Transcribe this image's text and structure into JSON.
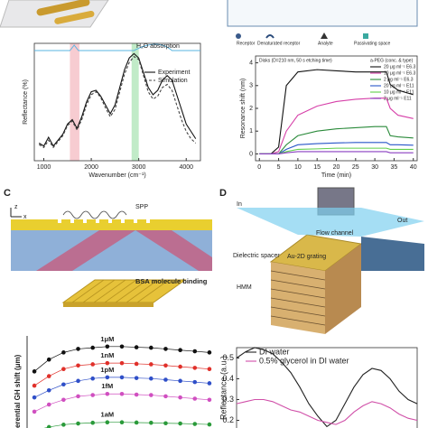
{
  "panels": {
    "c": "C",
    "d": "D"
  },
  "diagrams": {
    "top_right_legend": [
      "Receptor",
      "Denaturated receptor",
      "Analyte",
      "Passivating space"
    ],
    "c_axes": {
      "z": "z",
      "x": "x",
      "spp": "SPP"
    },
    "c_binding": "BSA molecule binding",
    "d_labels": {
      "in": "In",
      "out": "Out",
      "flow": "Flow channel",
      "spacer": "Dielectric spacer",
      "grating": "Au-2D grating",
      "hmm": "HMM"
    }
  },
  "chart_data": [
    {
      "type": "line",
      "xlabel": "Wavenumber (cm⁻¹)",
      "ylabel": "Reflectance (%)",
      "annotation": "H₂O absorption",
      "x": [
        900,
        1000,
        1100,
        1200,
        1300,
        1400,
        1500,
        1600,
        1700,
        1800,
        1900,
        2000,
        2100,
        2200,
        2300,
        2400,
        2500,
        2600,
        2700,
        2800,
        2900,
        3000,
        3100,
        3200,
        3300,
        3400,
        3500,
        3600,
        3700,
        3800,
        3900,
        4000,
        4100,
        4200
      ],
      "xlim": [
        800,
        4300
      ],
      "ylim": [
        0,
        80
      ],
      "xticks": [
        1000,
        2000,
        3000,
        4000
      ],
      "bands": [
        {
          "x": [
            1550,
            1750
          ],
          "color": "#f4b6bd"
        },
        {
          "x": [
            2850,
            3000
          ],
          "color": "#a6e3b0"
        }
      ],
      "series": [
        {
          "name": "Experiment",
          "color": "#111111",
          "dash": false,
          "values": [
            12,
            10,
            16,
            10,
            14,
            18,
            25,
            28,
            22,
            30,
            40,
            47,
            48,
            44,
            38,
            32,
            38,
            50,
            62,
            70,
            73,
            70,
            60,
            50,
            45,
            48,
            55,
            58,
            55,
            45,
            35,
            25,
            20,
            15
          ]
        },
        {
          "name": "Simulation",
          "color": "#444444",
          "dash": true,
          "values": [
            11,
            9,
            14,
            9,
            13,
            17,
            24,
            27,
            21,
            28,
            38,
            45,
            47,
            43,
            36,
            30,
            35,
            47,
            59,
            67,
            71,
            69,
            58,
            47,
            42,
            44,
            50,
            52,
            48,
            38,
            28,
            20,
            15,
            12
          ]
        }
      ]
    },
    {
      "type": "line",
      "xlabel": "Time (min)",
      "ylabel": "Resonance shift (nm)",
      "title": "Disks (D=210 nm, 50 s etching time)",
      "legend_title": "a-PEG (conc. & type)",
      "x": [
        0,
        3,
        5,
        7,
        10,
        15,
        20,
        25,
        30,
        33,
        34,
        36,
        40
      ],
      "xlim": [
        -1,
        41
      ],
      "ylim": [
        -0.3,
        4.3
      ],
      "xticks": [
        0,
        5,
        10,
        15,
        20,
        25,
        30,
        35,
        40
      ],
      "yticks": [
        0,
        1,
        2,
        3,
        4
      ],
      "series": [
        {
          "name": "20 μg ml⁻¹ E6.3",
          "color": "#111111",
          "values": [
            0,
            0,
            0.3,
            3.0,
            3.6,
            3.7,
            3.65,
            3.6,
            3.6,
            3.6,
            3.05,
            2.8,
            2.6
          ]
        },
        {
          "name": "10 μg ml⁻¹ E6.3",
          "color": "#d63fa8",
          "values": [
            0,
            0,
            0.1,
            1.0,
            1.7,
            2.1,
            2.3,
            2.4,
            2.45,
            2.45,
            2.0,
            1.7,
            1.55
          ]
        },
        {
          "name": "2 μg ml⁻¹ E6.3",
          "color": "#2a8a3a",
          "values": [
            0,
            0,
            0,
            0.4,
            0.8,
            1.0,
            1.1,
            1.15,
            1.2,
            1.2,
            0.8,
            0.75,
            0.7
          ]
        },
        {
          "name": "20 μg ml⁻¹ E11",
          "color": "#2856c8",
          "values": [
            0,
            0,
            0,
            0.2,
            0.4,
            0.45,
            0.48,
            0.5,
            0.5,
            0.5,
            0.4,
            0.4,
            0.38
          ]
        },
        {
          "name": "10 μg ml⁻¹ E11",
          "color": "#5fcf4a",
          "values": [
            0,
            0,
            0,
            0.1,
            0.2,
            0.22,
            0.25,
            0.25,
            0.25,
            0.25,
            0.2,
            0.2,
            0.2
          ]
        },
        {
          "name": "2 μg ml⁻¹ E11",
          "color": "#8a3fc0",
          "values": [
            0,
            0,
            0,
            0.05,
            0.1,
            0.1,
            0.1,
            0.1,
            0.1,
            0.1,
            0.05,
            0.05,
            0.05
          ]
        }
      ]
    },
    {
      "type": "dotline",
      "ylabel": "Differential GH shift (μm)",
      "x": [
        0,
        1,
        2,
        3,
        4,
        5,
        6,
        7,
        8,
        9,
        10,
        11,
        12
      ],
      "xlim": [
        -0.5,
        12.5
      ],
      "ylim": [
        0,
        45
      ],
      "series": [
        {
          "name": "1μM",
          "color": "#111111",
          "values": [
            30,
            35,
            38,
            39.5,
            40,
            40.5,
            40.5,
            40.2,
            40,
            39.5,
            39,
            38.5,
            38
          ]
        },
        {
          "name": "1nM",
          "color": "#e0302a",
          "values": [
            24,
            28,
            31,
            32.5,
            33,
            33.5,
            33.5,
            33.2,
            33,
            32.5,
            32,
            31.5,
            31
          ]
        },
        {
          "name": "1pM",
          "color": "#2f4fc8",
          "values": [
            19,
            22,
            24.5,
            26,
            27,
            27.5,
            27.5,
            27.2,
            27,
            26.5,
            26,
            25.5,
            25
          ]
        },
        {
          "name": "1fM",
          "color": "#d04fc0",
          "values": [
            13,
            16,
            18,
            19.5,
            20,
            20.5,
            20.5,
            20.2,
            20,
            19.5,
            19,
            18.5,
            18
          ]
        },
        {
          "name": "1aM",
          "color": "#2a9a3a",
          "values": [
            5,
            6.5,
            7.5,
            8,
            8.3,
            8.5,
            8.5,
            8.4,
            8.3,
            8.1,
            8,
            7.8,
            7.6
          ]
        }
      ]
    },
    {
      "type": "line",
      "ylabel": "Reflectance (a.u.)",
      "x": [
        0,
        5,
        10,
        15,
        20,
        25,
        30,
        35,
        40,
        45,
        50,
        55,
        60,
        65,
        70,
        75,
        80,
        85,
        90,
        95,
        100
      ],
      "xlim": [
        0,
        100
      ],
      "ylim": [
        0.15,
        0.55
      ],
      "yticks": [
        0.2,
        0.3,
        0.4,
        0.5
      ],
      "series": [
        {
          "name": "DI water",
          "color": "#222222",
          "values": [
            0.5,
            0.53,
            0.55,
            0.54,
            0.52,
            0.48,
            0.43,
            0.36,
            0.28,
            0.22,
            0.17,
            0.2,
            0.28,
            0.36,
            0.42,
            0.45,
            0.44,
            0.4,
            0.34,
            0.3,
            0.28
          ]
        },
        {
          "name": "0.5% glycerol in DI water",
          "color": "#d04fa8",
          "values": [
            0.28,
            0.29,
            0.3,
            0.3,
            0.29,
            0.27,
            0.25,
            0.24,
            0.22,
            0.2,
            0.19,
            0.18,
            0.2,
            0.24,
            0.27,
            0.29,
            0.28,
            0.26,
            0.23,
            0.21,
            0.2
          ]
        }
      ]
    }
  ]
}
